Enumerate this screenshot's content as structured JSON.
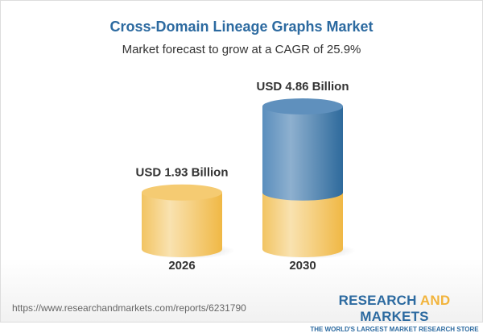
{
  "title": "Cross-Domain Lineage Graphs Market",
  "subtitle": "Market forecast to grow at a CAGR of 25.9%",
  "chart_data": {
    "type": "bar",
    "style": "3d-cylinder",
    "categories": [
      "2026",
      "2030"
    ],
    "values": [
      1.93,
      4.86
    ],
    "data_labels": [
      "USD 1.93 Billion",
      "USD 4.86 Billion"
    ],
    "unit": "USD Billion",
    "colors": {
      "base": "#f2c260",
      "growth": "#4f86b6"
    }
  },
  "footer": {
    "url": "https://www.researchandmarkets.com/reports/6231790",
    "logo_part1": "RESEARCH ",
    "logo_part2": "AND",
    "logo_part3": " MARKETS",
    "tagline": "THE WORLD'S LARGEST MARKET RESEARCH STORE"
  }
}
